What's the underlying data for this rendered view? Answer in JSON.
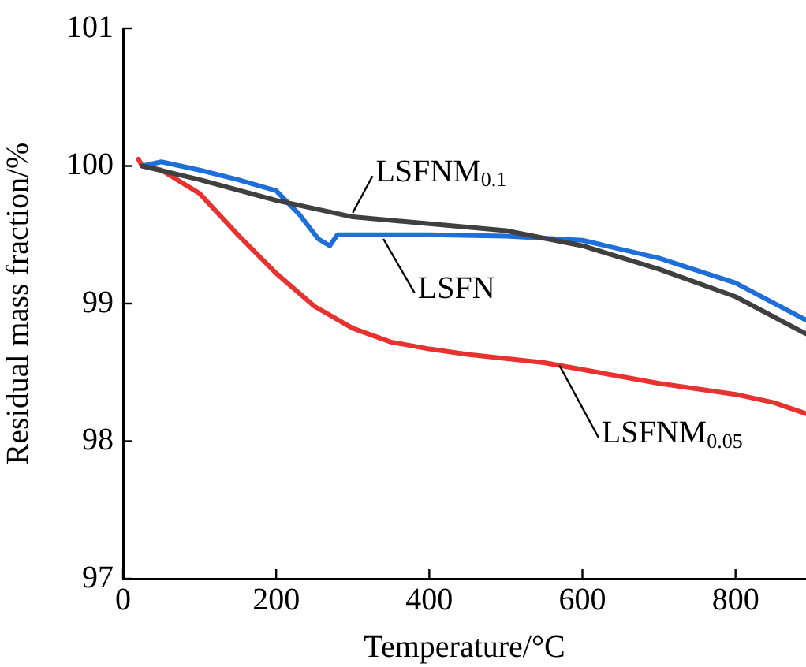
{
  "chart_data": {
    "type": "line",
    "xlabel": "Temperature/°C",
    "ylabel": "Residual mass fraction/%",
    "xlim": [
      0,
      892
    ],
    "xticks": [
      0,
      200,
      400,
      600,
      800
    ],
    "ylim": [
      97,
      101
    ],
    "yticks": [
      97,
      98,
      99,
      100,
      101
    ],
    "grid": false,
    "legend": false,
    "marker": "none",
    "line_style": "solid",
    "series": [
      {
        "name": "LSFNM$_{0.1}$",
        "color": "#404040",
        "x": [
          25,
          100,
          200,
          300,
          400,
          500,
          600,
          700,
          800,
          892
        ],
        "values": [
          100.0,
          99.9,
          99.75,
          99.63,
          99.58,
          99.53,
          99.42,
          99.25,
          99.05,
          98.78
        ]
      },
      {
        "name": "LSFN",
        "color": "#1f6fd8",
        "x": [
          25,
          50,
          100,
          150,
          200,
          230,
          255,
          270,
          280,
          300,
          400,
          500,
          600,
          700,
          800,
          892
        ],
        "values": [
          100.0,
          100.03,
          99.97,
          99.9,
          99.82,
          99.65,
          99.47,
          99.42,
          99.5,
          99.5,
          99.5,
          99.49,
          99.46,
          99.33,
          99.15,
          98.88
        ]
      },
      {
        "name": "LSFNM$_{0.05}$",
        "color": "#e8322f",
        "x": [
          20,
          25,
          50,
          100,
          150,
          200,
          250,
          300,
          350,
          400,
          450,
          500,
          550,
          600,
          650,
          700,
          750,
          800,
          850,
          892
        ],
        "values": [
          100.05,
          100.0,
          99.97,
          99.8,
          99.5,
          99.22,
          98.98,
          98.82,
          98.72,
          98.67,
          98.63,
          98.6,
          98.57,
          98.52,
          98.47,
          98.42,
          98.38,
          98.34,
          98.28,
          98.2
        ]
      }
    ]
  }
}
